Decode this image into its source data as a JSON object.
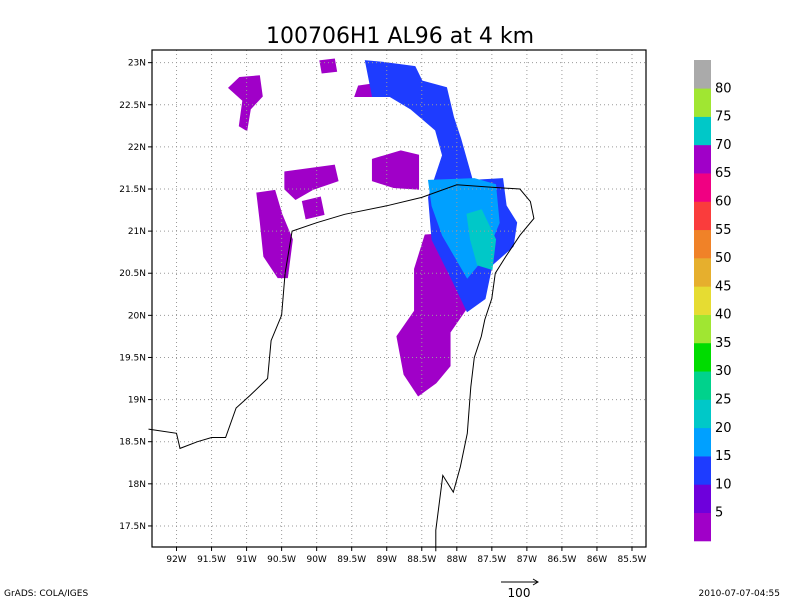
{
  "title": "100706H1 AL96 at 4 km",
  "footer": {
    "left": "GrADS: COLA/IGES",
    "right": "2010-07-07-04:55",
    "vector_label": "100"
  },
  "axes": {
    "x_ticks": [
      "92W",
      "91.5W",
      "91W",
      "90.5W",
      "90W",
      "89.5W",
      "89W",
      "88.5W",
      "88W",
      "87.5W",
      "87W",
      "86.5W",
      "86W",
      "85.5W"
    ],
    "y_ticks": [
      "23N",
      "22.5N",
      "22N",
      "21.5N",
      "21N",
      "20.5N",
      "20N",
      "19.5N",
      "19N",
      "18.5N",
      "18N",
      "17.5N"
    ],
    "lon_range": [
      -92.35,
      -85.3
    ],
    "lat_range": [
      17.25,
      23.15
    ],
    "grid": true
  },
  "colorbar": {
    "levels": [
      "5",
      "10",
      "15",
      "20",
      "25",
      "30",
      "35",
      "40",
      "45",
      "50",
      "55",
      "60",
      "65",
      "70",
      "75",
      "80"
    ],
    "colors": [
      "#a000c8",
      "#6e00dc",
      "#1e3cff",
      "#00a0ff",
      "#00c8c8",
      "#00d28c",
      "#00dc00",
      "#a0e632",
      "#e6dc32",
      "#e6af2d",
      "#f08228",
      "#fa3c3c",
      "#f00082",
      "#a000c8",
      "#00c8c8",
      "#a0e632",
      "#aaaaaa"
    ]
  },
  "wind_speed_regions": [
    {
      "category": "5-10",
      "color": "#a000c8",
      "outline": [
        [
          -91.1,
          22.82
        ],
        [
          -90.82,
          22.84
        ],
        [
          -90.78,
          22.6
        ],
        [
          -90.95,
          22.45
        ],
        [
          -91.0,
          22.2
        ],
        [
          -91.1,
          22.25
        ],
        [
          -91.05,
          22.55
        ],
        [
          -91.25,
          22.7
        ]
      ]
    },
    {
      "category": "5-10",
      "color": "#a000c8",
      "outline": [
        [
          -89.95,
          23.02
        ],
        [
          -89.75,
          23.04
        ],
        [
          -89.72,
          22.9
        ],
        [
          -89.92,
          22.88
        ]
      ]
    },
    {
      "category": "5-10",
      "color": "#a000c8",
      "outline": [
        [
          -89.4,
          22.72
        ],
        [
          -89.15,
          22.75
        ],
        [
          -89.1,
          22.6
        ],
        [
          -89.45,
          22.6
        ]
      ]
    },
    {
      "category": "5-10",
      "color": "#a000c8",
      "outline": [
        [
          -90.85,
          21.45
        ],
        [
          -90.6,
          21.48
        ],
        [
          -90.5,
          21.2
        ],
        [
          -90.35,
          20.9
        ],
        [
          -90.42,
          20.45
        ],
        [
          -90.55,
          20.45
        ],
        [
          -90.75,
          20.7
        ],
        [
          -90.8,
          21.1
        ]
      ]
    },
    {
      "category": "5-10",
      "color": "#a000c8",
      "outline": [
        [
          -90.45,
          21.7
        ],
        [
          -89.75,
          21.78
        ],
        [
          -89.7,
          21.6
        ],
        [
          -90.05,
          21.5
        ],
        [
          -90.3,
          21.38
        ],
        [
          -90.45,
          21.5
        ]
      ]
    },
    {
      "category": "5-10",
      "color": "#a000c8",
      "outline": [
        [
          -90.2,
          21.35
        ],
        [
          -89.95,
          21.4
        ],
        [
          -89.9,
          21.2
        ],
        [
          -90.15,
          21.15
        ]
      ]
    },
    {
      "category": "5-10",
      "color": "#a000c8",
      "outline": [
        [
          -89.2,
          21.85
        ],
        [
          -88.8,
          21.95
        ],
        [
          -88.55,
          21.9
        ],
        [
          -88.55,
          21.5
        ],
        [
          -88.9,
          21.52
        ],
        [
          -89.2,
          21.6
        ]
      ]
    },
    {
      "category": "5-10",
      "color": "#a000c8",
      "outline": [
        [
          -88.45,
          20.95
        ],
        [
          -87.95,
          20.98
        ],
        [
          -87.9,
          20.6
        ],
        [
          -87.85,
          20.1
        ],
        [
          -88.1,
          19.8
        ],
        [
          -88.1,
          19.4
        ],
        [
          -88.3,
          19.2
        ],
        [
          -88.55,
          19.05
        ],
        [
          -88.75,
          19.3
        ],
        [
          -88.85,
          19.75
        ],
        [
          -88.6,
          20.05
        ],
        [
          -88.6,
          20.55
        ]
      ]
    },
    {
      "category": "10-15",
      "color": "#1e3cff",
      "outline": [
        [
          -89.3,
          23.02
        ],
        [
          -89.05,
          23.0
        ],
        [
          -88.6,
          22.95
        ],
        [
          -88.5,
          22.78
        ],
        [
          -88.15,
          22.7
        ],
        [
          -88.05,
          22.35
        ],
        [
          -87.95,
          22.1
        ],
        [
          -87.78,
          21.6
        ],
        [
          -87.35,
          21.62
        ],
        [
          -87.3,
          21.3
        ],
        [
          -87.15,
          21.1
        ],
        [
          -87.2,
          20.82
        ],
        [
          -87.5,
          20.6
        ],
        [
          -87.6,
          20.2
        ],
        [
          -87.85,
          20.05
        ],
        [
          -88.05,
          20.4
        ],
        [
          -88.35,
          20.9
        ],
        [
          -88.4,
          21.4
        ],
        [
          -88.2,
          21.9
        ],
        [
          -88.3,
          22.2
        ],
        [
          -88.65,
          22.45
        ],
        [
          -88.95,
          22.6
        ],
        [
          -89.2,
          22.6
        ]
      ]
    },
    {
      "category": "15-20",
      "color": "#00a0ff",
      "outline": [
        [
          -88.4,
          21.6
        ],
        [
          -87.75,
          21.62
        ],
        [
          -87.45,
          21.55
        ],
        [
          -87.4,
          21.1
        ],
        [
          -87.6,
          20.7
        ],
        [
          -87.85,
          20.45
        ],
        [
          -88.2,
          20.95
        ],
        [
          -88.35,
          21.3
        ]
      ]
    },
    {
      "category": "20-25",
      "color": "#00c8c8",
      "outline": [
        [
          -87.85,
          21.2
        ],
        [
          -87.65,
          21.25
        ],
        [
          -87.45,
          20.9
        ],
        [
          -87.5,
          20.55
        ],
        [
          -87.7,
          20.6
        ],
        [
          -87.8,
          20.9
        ]
      ]
    }
  ],
  "coastline_lonlat": [
    [
      -92.4,
      18.65
    ],
    [
      -92.0,
      18.6
    ],
    [
      -91.95,
      18.42
    ],
    [
      -91.7,
      18.5
    ],
    [
      -91.5,
      18.55
    ],
    [
      -91.3,
      18.55
    ],
    [
      -91.15,
      18.9
    ],
    [
      -90.95,
      19.05
    ],
    [
      -90.7,
      19.25
    ],
    [
      -90.65,
      19.7
    ],
    [
      -90.5,
      20.0
    ],
    [
      -90.45,
      20.5
    ],
    [
      -90.35,
      21.0
    ],
    [
      -90.0,
      21.1
    ],
    [
      -89.6,
      21.2
    ],
    [
      -89.0,
      21.3
    ],
    [
      -88.5,
      21.4
    ],
    [
      -88.0,
      21.55
    ],
    [
      -87.5,
      21.52
    ],
    [
      -87.1,
      21.5
    ],
    [
      -86.95,
      21.35
    ],
    [
      -86.9,
      21.15
    ],
    [
      -87.1,
      20.95
    ],
    [
      -87.3,
      20.7
    ],
    [
      -87.45,
      20.5
    ],
    [
      -87.5,
      20.2
    ],
    [
      -87.6,
      19.95
    ],
    [
      -87.65,
      19.75
    ],
    [
      -87.75,
      19.5
    ],
    [
      -87.8,
      19.15
    ],
    [
      -87.85,
      18.6
    ],
    [
      -87.95,
      18.2
    ],
    [
      -88.05,
      17.9
    ],
    [
      -88.2,
      18.1
    ],
    [
      -88.3,
      17.45
    ],
    [
      -88.3,
      17.2
    ]
  ]
}
